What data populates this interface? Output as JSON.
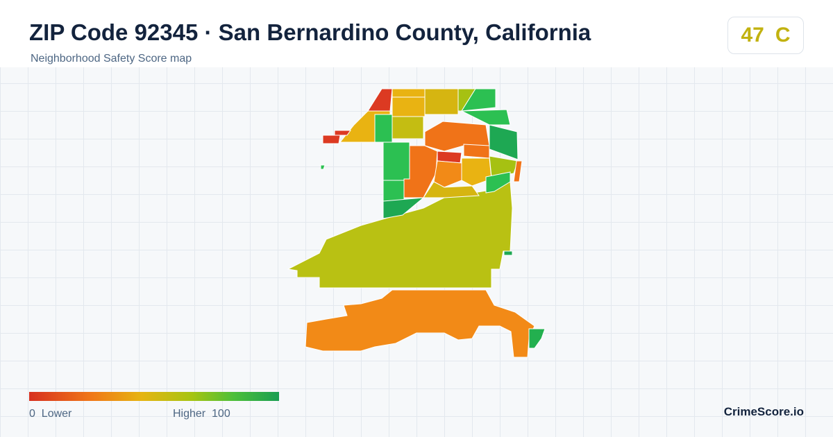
{
  "header": {
    "title": "ZIP Code 92345 · San Bernardino County, California",
    "subtitle": "Neighborhood Safety Score map"
  },
  "score": {
    "value": 47,
    "grade": "C"
  },
  "legend": {
    "min": 0,
    "min_label": "Lower",
    "max": 100,
    "max_label": "Higher"
  },
  "brand": "CrimeScore.io"
}
